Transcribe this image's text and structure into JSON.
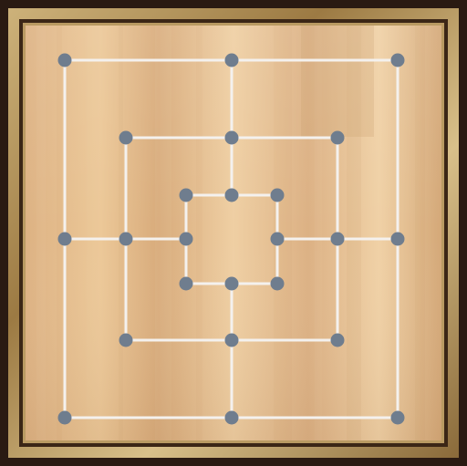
{
  "board": {
    "game": "nine-mens-morris",
    "rings": [
      "outer",
      "middle",
      "inner"
    ],
    "points_per_ring": 8,
    "total_points": 24,
    "pieces_on_board": 0,
    "colors": {
      "frame_outer": "#2a1a12",
      "frame_gold": "#a8874f",
      "frame_gold_light": "#d8c08a",
      "wood_base": "#e2b98a",
      "wood_light": "#f0cfa3",
      "wood_dark": "#c99a68",
      "line": "#f4f1ee",
      "node": "#6f7d8e"
    },
    "points": [
      {
        "id": "outer-top-left",
        "ring": "outer",
        "col": 0,
        "row": 0
      },
      {
        "id": "outer-top-mid",
        "ring": "outer",
        "col": 3,
        "row": 0
      },
      {
        "id": "outer-top-right",
        "ring": "outer",
        "col": 6,
        "row": 0
      },
      {
        "id": "middle-top-left",
        "ring": "middle",
        "col": 1,
        "row": 1
      },
      {
        "id": "middle-top-mid",
        "ring": "middle",
        "col": 3,
        "row": 1
      },
      {
        "id": "middle-top-right",
        "ring": "middle",
        "col": 5,
        "row": 1
      },
      {
        "id": "inner-top-left",
        "ring": "inner",
        "col": 2,
        "row": 2
      },
      {
        "id": "inner-top-mid",
        "ring": "inner",
        "col": 3,
        "row": 2
      },
      {
        "id": "inner-top-right",
        "ring": "inner",
        "col": 4,
        "row": 2
      },
      {
        "id": "outer-mid-left",
        "ring": "outer",
        "col": 0,
        "row": 3
      },
      {
        "id": "middle-mid-left",
        "ring": "middle",
        "col": 1,
        "row": 3
      },
      {
        "id": "inner-mid-left",
        "ring": "inner",
        "col": 2,
        "row": 3
      },
      {
        "id": "inner-mid-right",
        "ring": "inner",
        "col": 4,
        "row": 3
      },
      {
        "id": "middle-mid-right",
        "ring": "middle",
        "col": 5,
        "row": 3
      },
      {
        "id": "outer-mid-right",
        "ring": "outer",
        "col": 6,
        "row": 3
      },
      {
        "id": "inner-bottom-left",
        "ring": "inner",
        "col": 2,
        "row": 4
      },
      {
        "id": "inner-bottom-mid",
        "ring": "inner",
        "col": 3,
        "row": 4
      },
      {
        "id": "inner-bottom-right",
        "ring": "inner",
        "col": 4,
        "row": 4
      },
      {
        "id": "middle-bottom-left",
        "ring": "middle",
        "col": 1,
        "row": 5
      },
      {
        "id": "middle-bottom-mid",
        "ring": "middle",
        "col": 3,
        "row": 5
      },
      {
        "id": "middle-bottom-right",
        "ring": "middle",
        "col": 5,
        "row": 5
      },
      {
        "id": "outer-bottom-left",
        "ring": "outer",
        "col": 0,
        "row": 6
      },
      {
        "id": "outer-bottom-mid",
        "ring": "outer",
        "col": 3,
        "row": 6
      },
      {
        "id": "outer-bottom-right",
        "ring": "outer",
        "col": 6,
        "row": 6
      }
    ],
    "connections": [
      [
        "outer-top-left",
        "outer-top-right"
      ],
      [
        "outer-top-right",
        "outer-bottom-right"
      ],
      [
        "outer-bottom-right",
        "outer-bottom-left"
      ],
      [
        "outer-bottom-left",
        "outer-top-left"
      ],
      [
        "middle-top-left",
        "middle-top-right"
      ],
      [
        "middle-top-right",
        "middle-bottom-right"
      ],
      [
        "middle-bottom-right",
        "middle-bottom-left"
      ],
      [
        "middle-bottom-left",
        "middle-top-left"
      ],
      [
        "inner-top-left",
        "inner-top-right"
      ],
      [
        "inner-top-right",
        "inner-bottom-right"
      ],
      [
        "inner-bottom-right",
        "inner-bottom-left"
      ],
      [
        "inner-bottom-left",
        "inner-top-left"
      ],
      [
        "outer-top-mid",
        "inner-top-mid"
      ],
      [
        "inner-bottom-mid",
        "outer-bottom-mid"
      ],
      [
        "outer-mid-left",
        "inner-mid-left"
      ],
      [
        "inner-mid-right",
        "outer-mid-right"
      ]
    ]
  }
}
